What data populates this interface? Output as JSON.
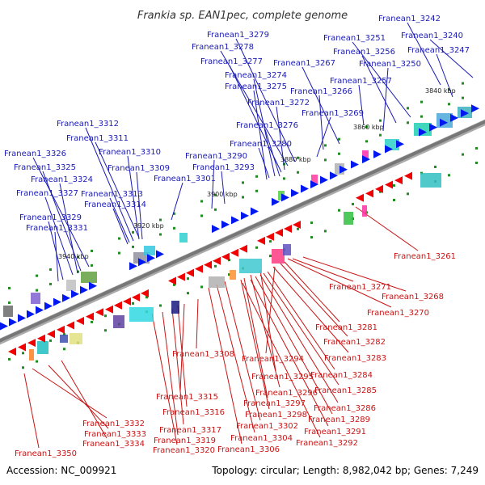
{
  "title": "Frankia sp. EAN1pec, complete genome",
  "footer": {
    "accession": "Accession: NC_009921",
    "summary": "Topology: circular; Length: 8,982,042 bp; Genes: 7,249"
  },
  "colors": {
    "forward_gene": "#0018f0",
    "reverse_gene": "#f00000",
    "forward_label": "#1a1ab4",
    "reverse_label": "#c81414",
    "backbone": "#7a7a7a",
    "tick": "#1e8c1e"
  },
  "kbp_markers": [
    "3840 kbp",
    "3860 kbp",
    "3880 kbp",
    "3900 kbp",
    "3920 kbp",
    "3940 kbp"
  ],
  "forward_genes": [
    "Franean1_3242",
    "Franean1_3240",
    "Franean1_3251",
    "Franean1_3247",
    "Franean1_3256",
    "Franean1_3250",
    "Franean1_3279",
    "Franean1_3278",
    "Franean1_3277",
    "Franean1_3267",
    "Franean1_3274",
    "Franean1_3257",
    "Franean1_3275",
    "Franean1_3266",
    "Franean1_3272",
    "Franean1_3269",
    "Franean1_3312",
    "Franean1_3276",
    "Franean1_3311",
    "Franean1_3280",
    "Franean1_3310",
    "Franean1_3326",
    "Franean1_3290",
    "Franean1_3325",
    "Franean1_3309",
    "Franean1_3293",
    "Franean1_3324",
    "Franean1_3301",
    "Franean1_3327",
    "Franean1_3313",
    "Franean1_3314",
    "Franean1_3329",
    "Franean1_3331"
  ],
  "reverse_genes": [
    "Franean1_3261",
    "Franean1_3271",
    "Franean1_3268",
    "Franean1_3270",
    "Franean1_3281",
    "Franean1_3282",
    "Franean1_3308",
    "Franean1_3294",
    "Franean1_3283",
    "Franean1_3295",
    "Franean1_3284",
    "Franean1_3296",
    "Franean1_3285",
    "Franean1_3315",
    "Franean1_3297",
    "Franean1_3298",
    "Franean1_3286",
    "Franean1_3316",
    "Franean1_3289",
    "Franean1_3332",
    "Franean1_3302",
    "Franean1_3291",
    "Franean1_3317",
    "Franean1_3333",
    "Franean1_3304",
    "Franean1_3292",
    "Franean1_3319",
    "Franean1_3334",
    "Franean1_3306",
    "Franean1_3320",
    "Franean1_3350"
  ]
}
